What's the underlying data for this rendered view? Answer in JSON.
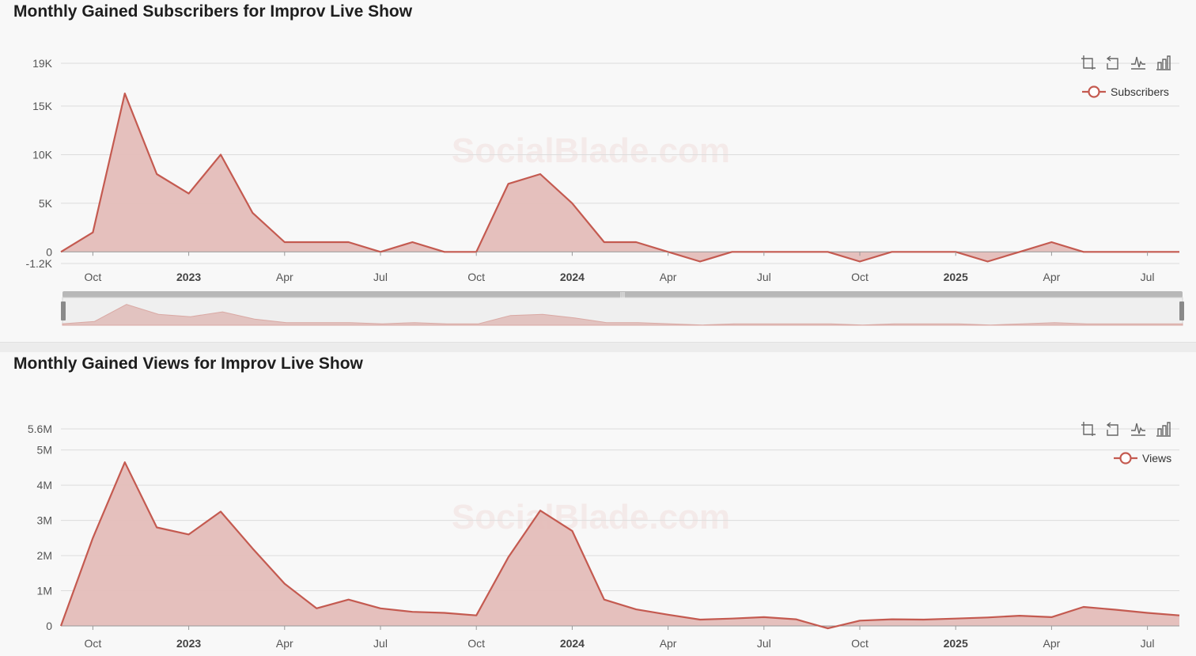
{
  "watermark": "SocialBlade.com",
  "colors": {
    "series": "#c45a50",
    "area": "#e4bdb9",
    "grid": "#dcdcdc",
    "axis": "#999999"
  },
  "toolbox": {
    "icons": [
      "zoom-icon",
      "zoom-reset-icon",
      "line-chart-icon",
      "bar-chart-icon"
    ]
  },
  "x_labels": [
    {
      "text": "Oct",
      "i": 1,
      "major": false
    },
    {
      "text": "2023",
      "i": 4,
      "major": true
    },
    {
      "text": "Apr",
      "i": 7,
      "major": false
    },
    {
      "text": "Jul",
      "i": 10,
      "major": false
    },
    {
      "text": "Oct",
      "i": 13,
      "major": false
    },
    {
      "text": "2024",
      "i": 16,
      "major": true
    },
    {
      "text": "Apr",
      "i": 19,
      "major": false
    },
    {
      "text": "Jul",
      "i": 22,
      "major": false
    },
    {
      "text": "Oct",
      "i": 25,
      "major": false
    },
    {
      "text": "2025",
      "i": 28,
      "major": true
    },
    {
      "text": "Apr",
      "i": 31,
      "major": false
    },
    {
      "text": "Jul",
      "i": 34,
      "major": false
    }
  ],
  "charts": {
    "subs": {
      "title": "Monthly Gained Subscribers for Improv Live Show",
      "legend": "Subscribers",
      "y_ticks": [
        {
          "label": "19K",
          "v": 19400
        },
        {
          "label": "15K",
          "v": 15000
        },
        {
          "label": "10K",
          "v": 10000
        },
        {
          "label": "5K",
          "v": 5000
        },
        {
          "label": "0",
          "v": 0
        },
        {
          "label": "-1.2K",
          "v": -1200
        }
      ]
    },
    "views": {
      "title": "Monthly Gained Views for Improv Live Show",
      "legend": "Views",
      "y_ticks": [
        {
          "label": "5.6M",
          "v": 5600000
        },
        {
          "label": "5M",
          "v": 5000000
        },
        {
          "label": "4M",
          "v": 4000000
        },
        {
          "label": "3M",
          "v": 3000000
        },
        {
          "label": "2M",
          "v": 2000000
        },
        {
          "label": "1M",
          "v": 1000000
        },
        {
          "label": "0",
          "v": 0
        }
      ]
    }
  },
  "chart_data": [
    {
      "type": "area",
      "title": "Monthly Gained Subscribers for Improv Live Show",
      "series": [
        {
          "name": "Subscribers",
          "values": [
            0,
            2000,
            16300,
            8000,
            6000,
            10000,
            4000,
            1000,
            1000,
            1000,
            0,
            1000,
            0,
            0,
            7000,
            8000,
            5000,
            1000,
            1000,
            0,
            -1000,
            0,
            0,
            0,
            0,
            -1000,
            0,
            0,
            0,
            -1000,
            0,
            1000,
            0,
            0,
            0,
            0
          ]
        }
      ],
      "ylim": [
        -1200,
        19400
      ],
      "legend": "top-right"
    },
    {
      "type": "area",
      "title": "Monthly Gained Views for Improv Live Show",
      "series": [
        {
          "name": "Views",
          "values": [
            0,
            2500000,
            4650000,
            2800000,
            2600000,
            3250000,
            2200000,
            1200000,
            500000,
            750000,
            500000,
            400000,
            370000,
            300000,
            1950000,
            3280000,
            2700000,
            750000,
            470000,
            320000,
            180000,
            210000,
            250000,
            190000,
            -70000,
            150000,
            190000,
            180000,
            210000,
            240000,
            290000,
            250000,
            540000,
            460000,
            370000,
            300000
          ]
        }
      ],
      "ylim": [
        0,
        5600000
      ],
      "legend": "top-right"
    }
  ]
}
